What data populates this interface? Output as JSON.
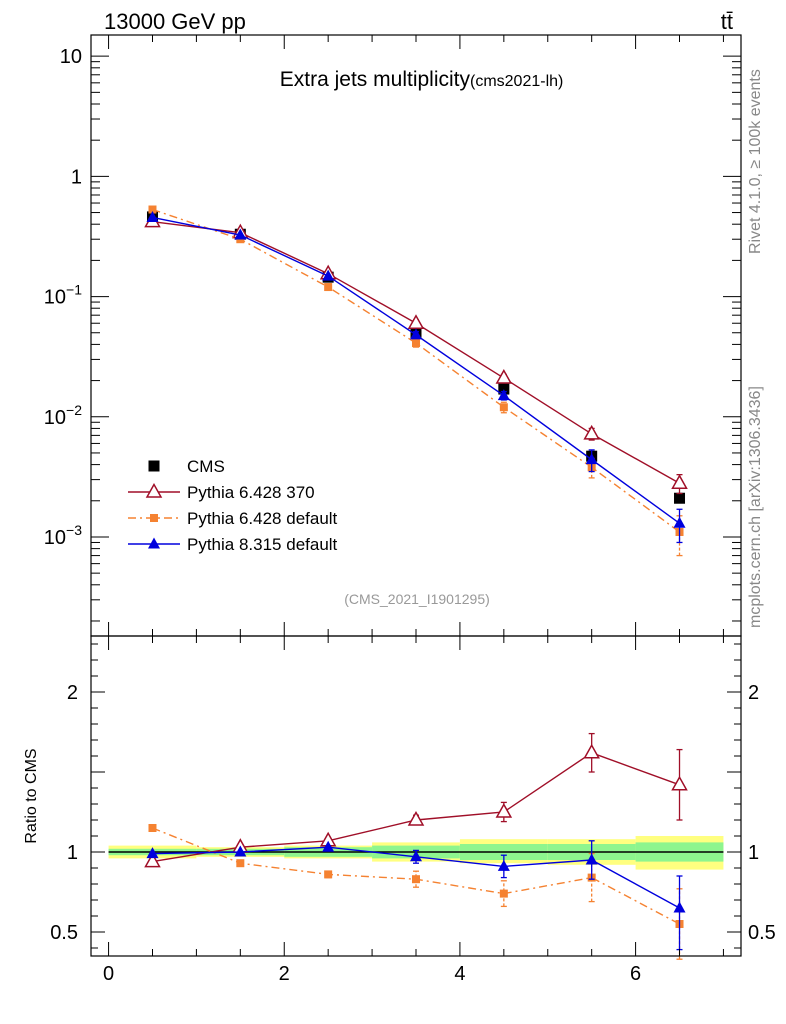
{
  "header": {
    "left": "13000 GeV pp",
    "right": "tt̄"
  },
  "side_labels": {
    "rivet": "Rivet 4.1.0, ≥ 100k events",
    "mcplots": "mcplots.cern.ch [arXiv:1306.3436]"
  },
  "chart_data": [
    {
      "type": "scatter",
      "panel": "main",
      "title": "Extra jets multiplicity",
      "subtitle": "(cms2021-lh)",
      "analysis_label": "(CMS_2021_I1901295)",
      "xlabel": "",
      "ylabel": "",
      "xlim": [
        -0.2,
        7.2
      ],
      "ylim": [
        0.00015,
        15
      ],
      "yscale": "log",
      "x_ticks": [
        0,
        2,
        4,
        6
      ],
      "y_ticks": [
        {
          "value": 10,
          "base": "10",
          "exp": ""
        },
        {
          "value": 1,
          "base": "1",
          "exp": ""
        },
        {
          "value": 0.1,
          "base": "10",
          "exp": "−1"
        },
        {
          "value": 0.01,
          "base": "10",
          "exp": "−2"
        },
        {
          "value": 0.001,
          "base": "10",
          "exp": "−3"
        }
      ],
      "x": [
        0.5,
        1.5,
        2.5,
        3.5,
        4.5,
        5.5,
        6.5
      ],
      "legend_position": "bottom-left",
      "series": [
        {
          "name": "CMS",
          "color": "#000000",
          "marker": "square",
          "line": "none",
          "values": [
            0.46,
            0.33,
            0.145,
            0.05,
            0.017,
            0.0047,
            0.0021
          ]
        },
        {
          "name": "Pythia 6.428 370",
          "color": "#a00f28",
          "marker": "triangle-open",
          "line": "solid",
          "values": [
            0.42,
            0.34,
            0.155,
            0.06,
            0.021,
            0.0072,
            0.0028
          ],
          "err_low": [
            0,
            0,
            0,
            0.004,
            0.0015,
            0.0008,
            0.0005
          ],
          "err_high": [
            0,
            0,
            0,
            0.004,
            0.0015,
            0.0008,
            0.0005
          ]
        },
        {
          "name": "Pythia 6.428 default",
          "color": "#f58231",
          "marker": "square-small",
          "line": "dashdot",
          "values": [
            0.53,
            0.3,
            0.12,
            0.041,
            0.012,
            0.0038,
            0.0011
          ],
          "err_low": [
            0,
            0,
            0,
            0.003,
            0.0012,
            0.0007,
            0.0004
          ],
          "err_high": [
            0,
            0,
            0,
            0.003,
            0.0012,
            0.0007,
            0.0004
          ]
        },
        {
          "name": "Pythia 8.315 default",
          "color": "#0000dd",
          "marker": "triangle-filled",
          "line": "solid",
          "values": [
            0.455,
            0.325,
            0.148,
            0.048,
            0.015,
            0.0044,
            0.0013
          ],
          "err_low": [
            0,
            0,
            0,
            0.003,
            0.0012,
            0.0009,
            0.0004
          ],
          "err_high": [
            0,
            0,
            0,
            0.003,
            0.0012,
            0.0009,
            0.0004
          ]
        }
      ]
    },
    {
      "type": "scatter",
      "panel": "ratio",
      "xlabel": "",
      "ylabel": "Ratio to CMS",
      "xlim": [
        -0.2,
        7.2
      ],
      "ylim": [
        0.35,
        2.35
      ],
      "x_ticks": [
        0,
        2,
        4,
        6
      ],
      "y_ticks": [
        0.5,
        1,
        2
      ],
      "bins": [
        {
          "x0": 0,
          "x1": 1,
          "stat_lo": 0.98,
          "stat_hi": 1.02,
          "tot_lo": 0.96,
          "tot_hi": 1.04
        },
        {
          "x0": 1,
          "x1": 2,
          "stat_lo": 0.98,
          "stat_hi": 1.02,
          "tot_lo": 0.97,
          "tot_hi": 1.03
        },
        {
          "x0": 2,
          "x1": 3,
          "stat_lo": 0.97,
          "stat_hi": 1.03,
          "tot_lo": 0.96,
          "tot_hi": 1.04
        },
        {
          "x0": 3,
          "x1": 4,
          "stat_lo": 0.96,
          "stat_hi": 1.04,
          "tot_lo": 0.94,
          "tot_hi": 1.06
        },
        {
          "x0": 4,
          "x1": 5,
          "stat_lo": 0.95,
          "stat_hi": 1.05,
          "tot_lo": 0.93,
          "tot_hi": 1.08
        },
        {
          "x0": 5,
          "x1": 6,
          "stat_lo": 0.95,
          "stat_hi": 1.05,
          "tot_lo": 0.92,
          "tot_hi": 1.08
        },
        {
          "x0": 6,
          "x1": 7,
          "stat_lo": 0.94,
          "stat_hi": 1.06,
          "tot_lo": 0.89,
          "tot_hi": 1.1
        }
      ],
      "x": [
        0.5,
        1.5,
        2.5,
        3.5,
        4.5,
        5.5,
        6.5
      ],
      "series": [
        {
          "name": "Pythia 6.428 370",
          "color": "#a00f28",
          "marker": "triangle-open",
          "line": "solid",
          "values": [
            0.94,
            1.03,
            1.07,
            1.2,
            1.25,
            1.62,
            1.42
          ],
          "err_low": [
            0,
            0,
            0,
            0.03,
            0.06,
            0.12,
            0.22
          ],
          "err_high": [
            0,
            0,
            0,
            0.03,
            0.06,
            0.12,
            0.22
          ]
        },
        {
          "name": "Pythia 6.428 default",
          "color": "#f58231",
          "marker": "square-small",
          "line": "dashdot",
          "values": [
            1.15,
            0.93,
            0.86,
            0.83,
            0.74,
            0.84,
            0.55
          ],
          "err_low": [
            0,
            0,
            0.02,
            0.05,
            0.08,
            0.15,
            0.22
          ],
          "err_high": [
            0,
            0,
            0.02,
            0.05,
            0.08,
            0.15,
            0.22
          ]
        },
        {
          "name": "Pythia 8.315 default",
          "color": "#0000dd",
          "marker": "triangle-filled",
          "line": "solid",
          "values": [
            0.99,
            1.0,
            1.03,
            0.97,
            0.91,
            0.95,
            0.65
          ],
          "err_low": [
            0,
            0,
            0,
            0.04,
            0.07,
            0.12,
            0.26
          ],
          "err_high": [
            0,
            0,
            0,
            0.04,
            0.07,
            0.12,
            0.2
          ]
        }
      ]
    }
  ]
}
